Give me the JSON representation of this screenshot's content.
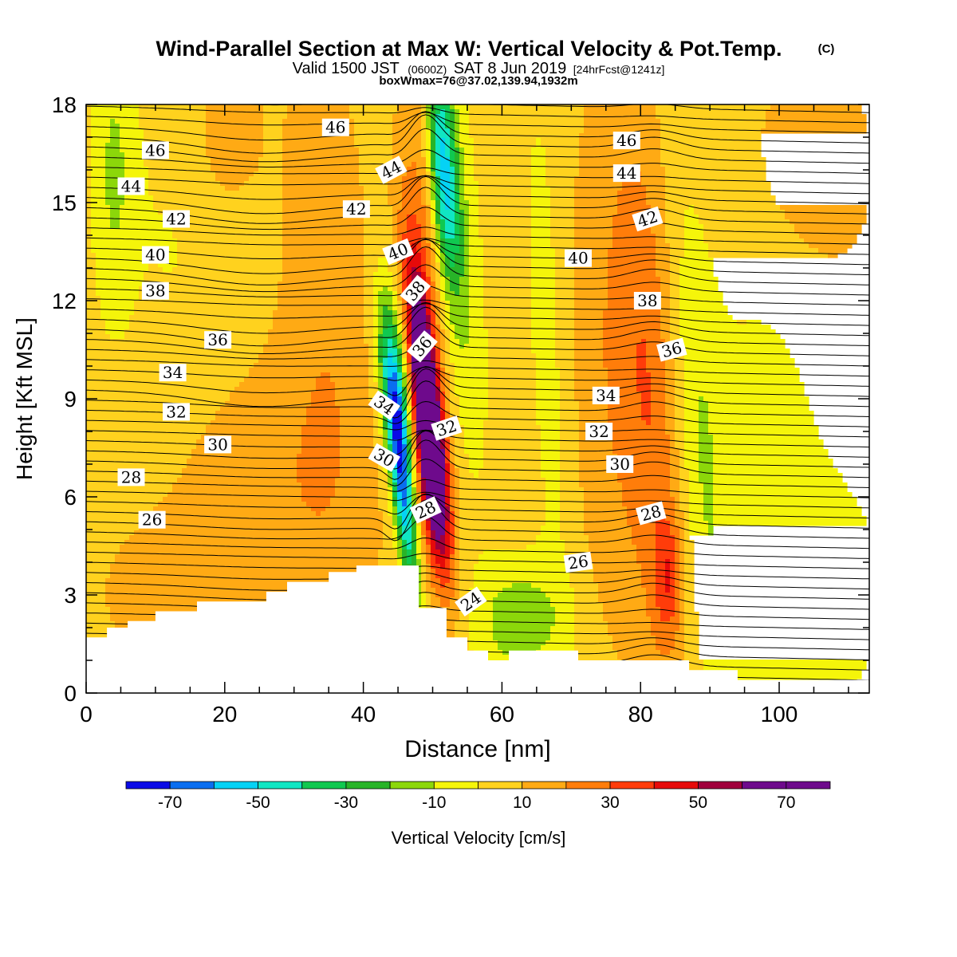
{
  "figure": {
    "title": "Wind-Parallel Section at Max W: Vertical Velocity & Pot.Temp.",
    "copyright": "(C)",
    "valid_prefix": "Valid 1500 JST",
    "valid_zulu": "(0600Z)",
    "valid_date": "SAT 8 Jun 2019",
    "forecast_tag": "[24hrFcst@1241z]",
    "box_info": "boxWmax=76@37.02,139.94,1932m"
  },
  "chart_data": {
    "type": "contour",
    "xlabel": "Distance [nm]",
    "ylabel": "Height [Kft MSL]",
    "xlim": [
      0,
      113
    ],
    "ylim": [
      0,
      18
    ],
    "xticks": [
      0,
      20,
      40,
      60,
      80,
      100
    ],
    "yticks": [
      0,
      3,
      6,
      9,
      12,
      15,
      18
    ],
    "grid": false,
    "colorbar": {
      "label": "Vertical Velocity [cm/s]",
      "tick_labels": [
        "-70",
        "-50",
        "-30",
        "-10",
        "10",
        "30",
        "50",
        "70"
      ],
      "tick_values": [
        -70,
        -50,
        -30,
        -10,
        10,
        30,
        50,
        70
      ],
      "bounds": [
        -80,
        -70,
        -60,
        -50,
        -40,
        -30,
        -20,
        -10,
        0,
        10,
        20,
        30,
        40,
        50,
        60,
        70,
        80
      ],
      "colors": [
        "#0a0ae6",
        "#0a6ef0",
        "#05d2f5",
        "#10e6c3",
        "#10c850",
        "#28b428",
        "#8cd70a",
        "#f5f50a",
        "#ffd21e",
        "#ffaa14",
        "#ff7d0a",
        "#ff3c0a",
        "#e60a0a",
        "#a0003c",
        "#6e0a8c",
        "#6e0a8c"
      ]
    },
    "terrain_kft": [
      [
        0,
        1.7
      ],
      [
        3,
        1.7
      ],
      [
        3,
        2.0
      ],
      [
        6,
        2.0
      ],
      [
        6,
        2.2
      ],
      [
        10,
        2.2
      ],
      [
        10,
        2.5
      ],
      [
        16,
        2.5
      ],
      [
        16,
        2.8
      ],
      [
        26,
        2.8
      ],
      [
        26,
        3.1
      ],
      [
        29,
        3.1
      ],
      [
        29,
        3.4
      ],
      [
        35,
        3.4
      ],
      [
        35,
        3.7
      ],
      [
        39,
        3.7
      ],
      [
        39,
        3.9
      ],
      [
        48,
        3.9
      ],
      [
        48,
        2.6
      ],
      [
        52,
        2.6
      ],
      [
        52,
        1.7
      ],
      [
        55,
        1.7
      ],
      [
        55,
        1.3
      ],
      [
        58,
        1.3
      ],
      [
        58,
        1.0
      ],
      [
        61,
        1.0
      ],
      [
        61,
        1.3
      ],
      [
        71,
        1.3
      ],
      [
        71,
        1.0
      ],
      [
        87,
        1.0
      ],
      [
        87,
        0.7
      ],
      [
        94,
        0.7
      ],
      [
        94,
        0.4
      ],
      [
        113,
        0.4
      ]
    ],
    "vertical_velocity_features": [
      {
        "x": 49,
        "y": 9.0,
        "sx": 1.3,
        "sy": 3.0,
        "tilt": -0.5,
        "amp": 80
      },
      {
        "x": 50,
        "y": 6.5,
        "sx": 1.8,
        "sy": 2.3,
        "tilt": -0.4,
        "amp": 35
      },
      {
        "x": 45.5,
        "y": 6.8,
        "sx": 1.1,
        "sy": 2.6,
        "tilt": -0.45,
        "amp": -70
      },
      {
        "x": 44.5,
        "y": 9.5,
        "sx": 1.6,
        "sy": 2.0,
        "tilt": -0.45,
        "amp": -35
      },
      {
        "x": 51.5,
        "y": 16.0,
        "sx": 1.4,
        "sy": 2.5,
        "tilt": -0.3,
        "amp": -55
      },
      {
        "x": 49,
        "y": 13.5,
        "sx": 2.0,
        "sy": 4.0,
        "tilt": -0.3,
        "amp": 20
      },
      {
        "x": 54,
        "y": 13.0,
        "sx": 2.2,
        "sy": 4.5,
        "tilt": -0.3,
        "amp": -15
      },
      {
        "x": 62.5,
        "y": 2.2,
        "sx": 4.5,
        "sy": 1.3,
        "tilt": 0,
        "amp": -22
      },
      {
        "x": 82,
        "y": 8.5,
        "sx": 3.5,
        "sy": 6.5,
        "tilt": -0.25,
        "amp": 20
      },
      {
        "x": 84,
        "y": 3.5,
        "sx": 1.4,
        "sy": 1.3,
        "tilt": 0,
        "amp": 22
      },
      {
        "x": 88,
        "y": 8.0,
        "sx": 2.8,
        "sy": 6.0,
        "tilt": -0.3,
        "amp": -18
      },
      {
        "x": 75,
        "y": 10.0,
        "sx": 6.0,
        "sy": 6.0,
        "tilt": 0,
        "amp": 12
      },
      {
        "x": 67,
        "y": 10.0,
        "sx": 2.5,
        "sy": 6.5,
        "tilt": -0.2,
        "amp": -12
      },
      {
        "x": 35,
        "y": 11.0,
        "sx": 5.0,
        "sy": 7.0,
        "tilt": -0.2,
        "amp": 12
      },
      {
        "x": 25,
        "y": 6.5,
        "sx": 9.0,
        "sy": 3.0,
        "tilt": 0,
        "amp": 11
      },
      {
        "x": 15,
        "y": 3.0,
        "sx": 10.0,
        "sy": 1.8,
        "tilt": 0,
        "amp": 10
      },
      {
        "x": 98,
        "y": 10.0,
        "sx": 6.0,
        "sy": 6.0,
        "tilt": 0,
        "amp": -8
      },
      {
        "x": 103,
        "y": 16.0,
        "sx": 8.0,
        "sy": 3.0,
        "tilt": 0,
        "amp": 12
      },
      {
        "x": 14,
        "y": 14.0,
        "sx": 8.0,
        "sy": 4.0,
        "tilt": 0,
        "amp": -6
      },
      {
        "x": 20,
        "y": 17.0,
        "sx": 4.0,
        "sy": 2.0,
        "tilt": 0,
        "amp": 12
      },
      {
        "x": 4,
        "y": 16.0,
        "sx": 2.0,
        "sy": 3.0,
        "tilt": 0,
        "amp": -15
      },
      {
        "x": 107,
        "y": 3.0,
        "sx": 8.0,
        "sy": 3.0,
        "tilt": 0,
        "amp": -8
      }
    ],
    "potential_temperature_labels": [
      {
        "text": "46",
        "x": 10,
        "y": 16.6,
        "angle": 0
      },
      {
        "text": "46",
        "x": 36,
        "y": 17.3,
        "angle": 0
      },
      {
        "text": "46",
        "x": 78,
        "y": 16.9,
        "angle": 0
      },
      {
        "text": "44",
        "x": 6.5,
        "y": 15.5,
        "angle": 0
      },
      {
        "text": "44",
        "x": 44,
        "y": 16.0,
        "angle": -28
      },
      {
        "text": "44",
        "x": 78,
        "y": 15.9,
        "angle": 0
      },
      {
        "text": "42",
        "x": 13,
        "y": 14.5,
        "angle": 0
      },
      {
        "text": "42",
        "x": 39,
        "y": 14.8,
        "angle": 0
      },
      {
        "text": "42",
        "x": 81,
        "y": 14.5,
        "angle": -18
      },
      {
        "text": "40",
        "x": 10,
        "y": 13.4,
        "angle": 0
      },
      {
        "text": "40",
        "x": 45,
        "y": 13.5,
        "angle": -22
      },
      {
        "text": "40",
        "x": 71,
        "y": 13.3,
        "angle": 0
      },
      {
        "text": "38",
        "x": 10,
        "y": 12.3,
        "angle": 0
      },
      {
        "text": "38",
        "x": 47.5,
        "y": 12.3,
        "angle": -50
      },
      {
        "text": "38",
        "x": 81,
        "y": 12.0,
        "angle": 0
      },
      {
        "text": "36",
        "x": 19,
        "y": 10.8,
        "angle": 0
      },
      {
        "text": "36",
        "x": 48.5,
        "y": 10.6,
        "angle": -50
      },
      {
        "text": "36",
        "x": 84.5,
        "y": 10.5,
        "angle": -15
      },
      {
        "text": "34",
        "x": 12.5,
        "y": 9.8,
        "angle": 0
      },
      {
        "text": "34",
        "x": 43,
        "y": 8.8,
        "angle": 35
      },
      {
        "text": "34",
        "x": 75,
        "y": 9.1,
        "angle": 0
      },
      {
        "text": "32",
        "x": 13,
        "y": 8.6,
        "angle": 0
      },
      {
        "text": "32",
        "x": 52,
        "y": 8.1,
        "angle": -18
      },
      {
        "text": "32",
        "x": 74,
        "y": 8.0,
        "angle": 0
      },
      {
        "text": "30",
        "x": 19,
        "y": 7.6,
        "angle": 0
      },
      {
        "text": "30",
        "x": 43,
        "y": 7.2,
        "angle": 30
      },
      {
        "text": "30",
        "x": 77,
        "y": 7.0,
        "angle": 0
      },
      {
        "text": "28",
        "x": 6.5,
        "y": 6.6,
        "angle": 0
      },
      {
        "text": "28",
        "x": 49,
        "y": 5.6,
        "angle": -25
      },
      {
        "text": "28",
        "x": 81.5,
        "y": 5.5,
        "angle": -15
      },
      {
        "text": "26",
        "x": 9.5,
        "y": 5.3,
        "angle": 0
      },
      {
        "text": "26",
        "x": 71,
        "y": 4.0,
        "angle": -8
      },
      {
        "text": "24",
        "x": 55.5,
        "y": 2.8,
        "angle": -35
      }
    ]
  }
}
